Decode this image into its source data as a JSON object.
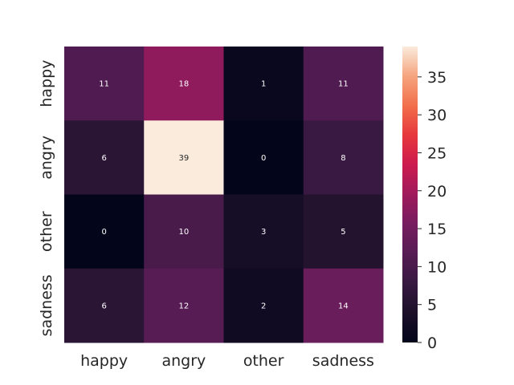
{
  "chart_data": {
    "type": "heatmap",
    "title": "",
    "xlabel": "",
    "ylabel": "",
    "x_categories": [
      "happy",
      "angry",
      "other",
      "sadness"
    ],
    "y_categories": [
      "happy",
      "angry",
      "other",
      "sadness"
    ],
    "values": [
      [
        11,
        18,
        1,
        11
      ],
      [
        6,
        39,
        0,
        8
      ],
      [
        0,
        10,
        3,
        5
      ],
      [
        6,
        12,
        2,
        14
      ]
    ],
    "colorbar": {
      "range": [
        0,
        39
      ],
      "ticks": [
        0,
        5,
        10,
        15,
        20,
        25,
        30,
        35
      ],
      "colormap": "rocket"
    },
    "annotations": true,
    "grid": false
  }
}
